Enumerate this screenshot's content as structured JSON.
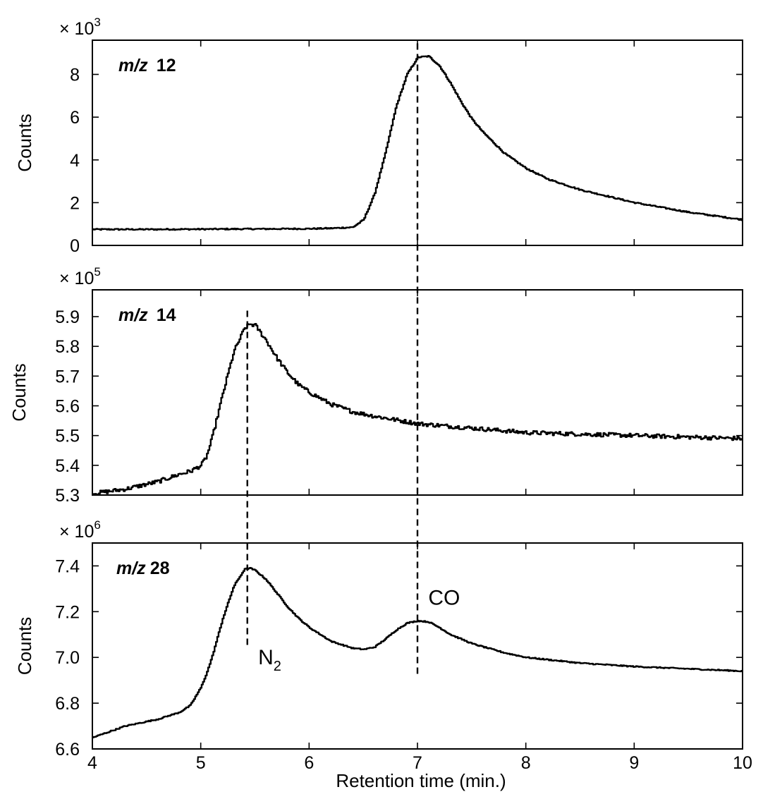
{
  "chart_data": {
    "type": "line",
    "shared_x": {
      "xlabel": "Retention time (min.)",
      "xlim": [
        4,
        10
      ],
      "xticks": [
        4,
        5,
        6,
        7,
        8,
        9,
        10
      ]
    },
    "panels": [
      {
        "id": "mz12",
        "label_prefix": "m/z",
        "label_value": "12",
        "ylabel": "Counts",
        "multiplier_base": "× 10",
        "multiplier_exp": "3",
        "ylim": [
          0,
          9.6
        ],
        "yticks": [
          0,
          2,
          4,
          6,
          8
        ],
        "series": [
          {
            "x": [
              4.0,
              4.5,
              5.0,
              5.5,
              6.0,
              6.2,
              6.4,
              6.5,
              6.6,
              6.7,
              6.8,
              6.9,
              7.0,
              7.1,
              7.2,
              7.3,
              7.4,
              7.5,
              7.6,
              7.8,
              8.0,
              8.2,
              8.5,
              9.0,
              9.5,
              10.0
            ],
            "y": [
              0.75,
              0.75,
              0.76,
              0.77,
              0.78,
              0.8,
              0.85,
              1.2,
              2.4,
              4.3,
              6.5,
              8.0,
              8.8,
              8.85,
              8.4,
              7.6,
              6.7,
              5.9,
              5.3,
              4.3,
              3.6,
              3.1,
              2.6,
              2.0,
              1.55,
              1.2
            ],
            "noise": 0.03
          }
        ]
      },
      {
        "id": "mz14",
        "label_prefix": "m/z",
        "label_value": "14",
        "ylabel": "Counts",
        "multiplier_base": "× 10",
        "multiplier_exp": "5",
        "ylim": [
          5.3,
          5.99
        ],
        "yticks": [
          5.3,
          5.4,
          5.5,
          5.6,
          5.7,
          5.8,
          5.9
        ],
        "series": [
          {
            "x": [
              4.0,
              4.3,
              4.6,
              4.8,
              4.9,
              5.0,
              5.05,
              5.1,
              5.2,
              5.3,
              5.4,
              5.45,
              5.5,
              5.6,
              5.7,
              5.8,
              5.9,
              6.0,
              6.2,
              6.4,
              6.6,
              7.0,
              7.5,
              8.0,
              9.0,
              10.0
            ],
            "y": [
              5.305,
              5.32,
              5.345,
              5.37,
              5.38,
              5.4,
              5.43,
              5.49,
              5.64,
              5.78,
              5.86,
              5.875,
              5.87,
              5.82,
              5.76,
              5.71,
              5.67,
              5.645,
              5.605,
              5.58,
              5.565,
              5.54,
              5.525,
              5.51,
              5.5,
              5.49
            ],
            "noise": 0.007
          }
        ]
      },
      {
        "id": "mz28",
        "label_prefix": "m/z",
        "label_value": "28",
        "ylabel": "Counts",
        "multiplier_base": "× 10",
        "multiplier_exp": "6",
        "ylim": [
          6.6,
          7.5
        ],
        "yticks": [
          6.6,
          6.8,
          7.0,
          7.2,
          7.4
        ],
        "series": [
          {
            "x": [
              4.0,
              4.3,
              4.6,
              4.8,
              4.9,
              5.0,
              5.05,
              5.1,
              5.2,
              5.3,
              5.4,
              5.45,
              5.5,
              5.6,
              5.7,
              5.8,
              5.9,
              6.0,
              6.2,
              6.4,
              6.5,
              6.6,
              6.7,
              6.8,
              6.9,
              7.0,
              7.1,
              7.2,
              7.3,
              7.5,
              7.8,
              8.0,
              8.5,
              9.0,
              9.5,
              10.0
            ],
            "y": [
              6.65,
              6.7,
              6.73,
              6.76,
              6.79,
              6.87,
              6.93,
              7.0,
              7.17,
              7.31,
              7.385,
              7.39,
              7.38,
              7.34,
              7.28,
              7.22,
              7.17,
              7.13,
              7.07,
              7.04,
              7.035,
              7.045,
              7.08,
              7.12,
              7.15,
              7.16,
              7.155,
              7.13,
              7.1,
              7.06,
              7.02,
              7.0,
              6.975,
              6.96,
              6.95,
              6.94
            ],
            "noise": 0.0025
          }
        ]
      }
    ],
    "markers": [
      {
        "x": 5.43,
        "from_panel": 1,
        "from_value": 5.92,
        "to_panel": 2,
        "to_value": 7.04
      },
      {
        "x": 7.0,
        "from_panel": 0,
        "from_value": 9.45,
        "to_panel": 2,
        "to_value": 6.91
      }
    ],
    "annotations": [
      {
        "panel": 2,
        "text": "N",
        "sub": "2",
        "x": 5.53,
        "y": 6.97
      },
      {
        "panel": 2,
        "text": "CO",
        "sub": "",
        "x": 7.1,
        "y": 7.23
      }
    ]
  }
}
